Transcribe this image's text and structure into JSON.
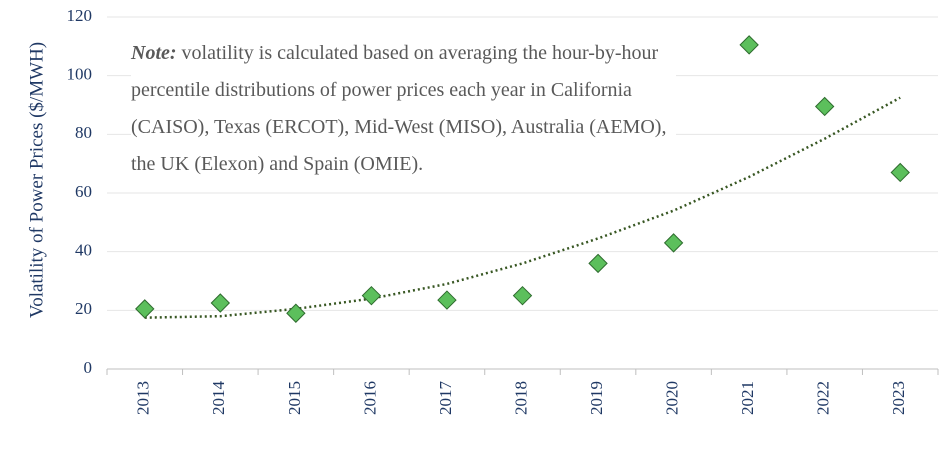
{
  "chart_data": {
    "type": "scatter",
    "y_label": "Volatility of Power Prices ($/MWH)",
    "note_label": "Note:",
    "note": "volatility is calculated based on averaging the hour-by-hour percentile distributions of power prices each year in California (CAISO), Texas (ERCOT), Mid-West (MISO), Australia (AEMO), the UK (Elexon) and Spain (OMIE).",
    "categories": [
      "2013",
      "2014",
      "2015",
      "2016",
      "2017",
      "2018",
      "2019",
      "2020",
      "2021",
      "2022",
      "2023"
    ],
    "values": [
      20.5,
      22.5,
      19,
      25,
      23.5,
      25,
      36,
      43,
      110.5,
      89.5,
      67
    ],
    "color": "#5cbf5c",
    "trendline": {
      "values": [
        17.5,
        18,
        20.5,
        24,
        29,
        36,
        44.5,
        54,
        65.5,
        78.5,
        92.5
      ],
      "color": "#385723"
    },
    "ylim": [
      0,
      120
    ],
    "yticks": [
      0,
      20,
      40,
      60,
      80,
      100,
      120
    ],
    "grid": true
  }
}
